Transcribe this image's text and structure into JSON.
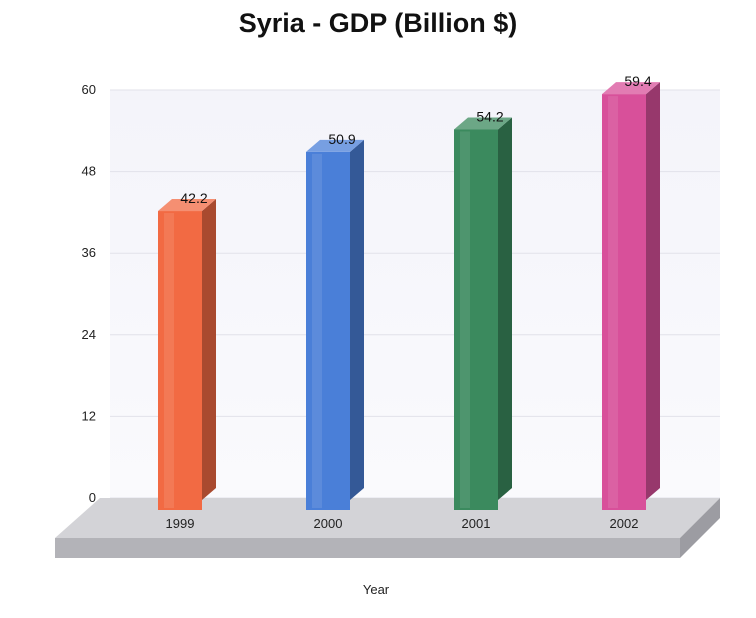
{
  "chart_data": {
    "type": "bar",
    "title": "Syria - GDP (Billion $)",
    "xlabel": "Year",
    "ylabel": "",
    "categories": [
      "1999",
      "2000",
      "2001",
      "2002"
    ],
    "values": [
      42.2,
      50.9,
      54.2,
      59.4
    ],
    "value_labels": [
      "42.2",
      "50.9",
      "54.2",
      "59.4"
    ],
    "yticks": [
      "0",
      "12",
      "24",
      "36",
      "48",
      "60"
    ],
    "ylim": [
      0,
      60
    ],
    "grid": true,
    "legend": "none",
    "style": "3d",
    "bar_colors": [
      "#f26a43",
      "#4a7fd8",
      "#3b8a5e",
      "#d8509a"
    ]
  }
}
